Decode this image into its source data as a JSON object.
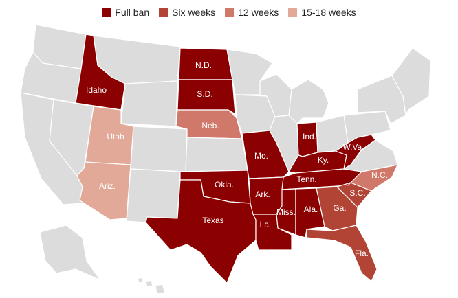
{
  "colors": {
    "none": "#dcdcdc",
    "full_ban": "#8b0000",
    "six_weeks": "#b24436",
    "twelve_weeks": "#d0786a",
    "fifteen_eighteen_weeks": "#e2a998"
  },
  "legend": [
    {
      "label": "Full ban",
      "category": "full_ban"
    },
    {
      "label": "Six weeks",
      "category": "six_weeks"
    },
    {
      "label": "12 weeks",
      "category": "twelve_weeks"
    },
    {
      "label": "15-18 weeks",
      "category": "fifteen_eighteen_weeks"
    }
  ],
  "states": [
    {
      "id": "WA",
      "label": "",
      "category": "none"
    },
    {
      "id": "OR",
      "label": "",
      "category": "none"
    },
    {
      "id": "CA",
      "label": "",
      "category": "none"
    },
    {
      "id": "NV",
      "label": "",
      "category": "none"
    },
    {
      "id": "ID",
      "label": "Idaho",
      "category": "full_ban"
    },
    {
      "id": "MT",
      "label": "",
      "category": "none"
    },
    {
      "id": "WY",
      "label": "",
      "category": "none"
    },
    {
      "id": "UT",
      "label": "Utah",
      "category": "fifteen_eighteen_weeks"
    },
    {
      "id": "AZ",
      "label": "Ariz.",
      "category": "fifteen_eighteen_weeks"
    },
    {
      "id": "CO",
      "label": "",
      "category": "none"
    },
    {
      "id": "NM",
      "label": "",
      "category": "none"
    },
    {
      "id": "ND",
      "label": "N.D.",
      "category": "full_ban"
    },
    {
      "id": "SD",
      "label": "S.D.",
      "category": "full_ban"
    },
    {
      "id": "NE",
      "label": "Neb.",
      "category": "twelve_weeks"
    },
    {
      "id": "KS",
      "label": "",
      "category": "none"
    },
    {
      "id": "OK",
      "label": "Okla.",
      "category": "full_ban"
    },
    {
      "id": "TX",
      "label": "Texas",
      "category": "full_ban"
    },
    {
      "id": "MN",
      "label": "",
      "category": "none"
    },
    {
      "id": "IA",
      "label": "",
      "category": "none"
    },
    {
      "id": "MO",
      "label": "Mo.",
      "category": "full_ban"
    },
    {
      "id": "AR",
      "label": "Ark.",
      "category": "full_ban"
    },
    {
      "id": "LA",
      "label": "La.",
      "category": "full_ban"
    },
    {
      "id": "WI",
      "label": "",
      "category": "none"
    },
    {
      "id": "IL",
      "label": "",
      "category": "none"
    },
    {
      "id": "MI",
      "label": "",
      "category": "none"
    },
    {
      "id": "IN",
      "label": "Ind.",
      "category": "full_ban"
    },
    {
      "id": "OH",
      "label": "",
      "category": "none"
    },
    {
      "id": "KY",
      "label": "Ky.",
      "category": "full_ban"
    },
    {
      "id": "TN",
      "label": "Tenn.",
      "category": "full_ban"
    },
    {
      "id": "MS",
      "label": "Miss.",
      "category": "full_ban"
    },
    {
      "id": "AL",
      "label": "Ala.",
      "category": "full_ban"
    },
    {
      "id": "GA",
      "label": "Ga.",
      "category": "six_weeks"
    },
    {
      "id": "FL",
      "label": "Fla.",
      "category": "six_weeks"
    },
    {
      "id": "SC",
      "label": "S.C.",
      "category": "six_weeks"
    },
    {
      "id": "NC",
      "label": "N.C.",
      "category": "twelve_weeks"
    },
    {
      "id": "WV",
      "label": "W.Va.",
      "category": "full_ban"
    },
    {
      "id": "VA",
      "label": "",
      "category": "none"
    },
    {
      "id": "PA",
      "label": "",
      "category": "none"
    },
    {
      "id": "NY",
      "label": "",
      "category": "none"
    },
    {
      "id": "NE_STATES",
      "label": "",
      "category": "none"
    },
    {
      "id": "AK",
      "label": "",
      "category": "none"
    },
    {
      "id": "HI",
      "label": "",
      "category": "none"
    }
  ]
}
